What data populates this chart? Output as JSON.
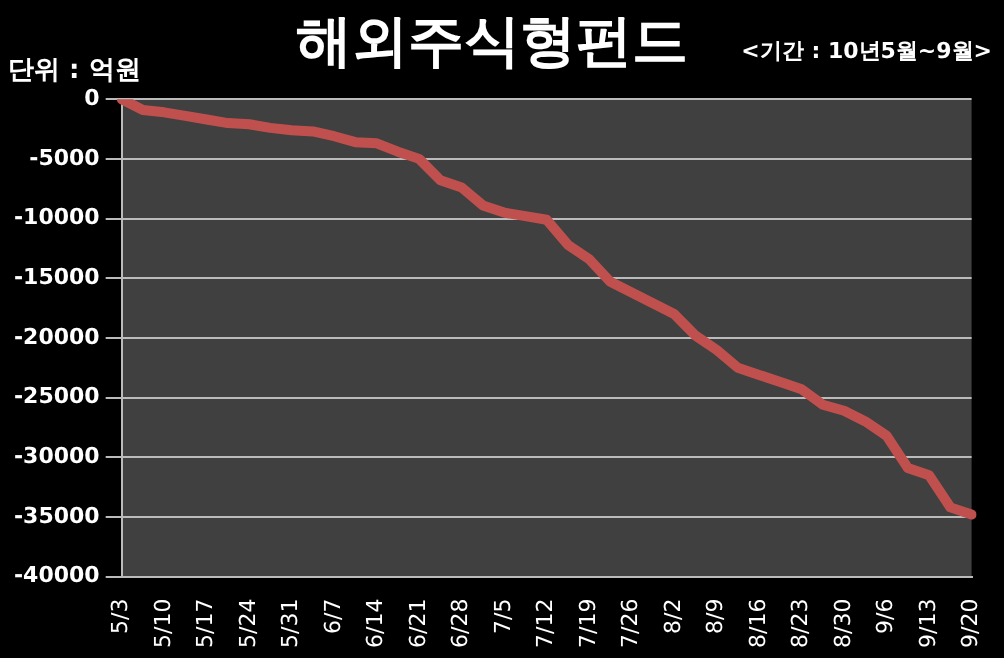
{
  "chart_data": {
    "type": "line",
    "title": "해외주식형펀드",
    "annotations": [
      "단위 : 억원",
      "<기간 : 10년5월~9월>"
    ],
    "categories": [
      "5/3",
      null,
      "5/10",
      null,
      "5/17",
      null,
      "5/24",
      null,
      "5/31",
      null,
      "6/7",
      null,
      "6/14",
      null,
      "6/21",
      null,
      "6/28",
      null,
      "7/5",
      null,
      "7/12",
      null,
      "7/19",
      null,
      "7/26",
      null,
      "8/2",
      null,
      "8/9",
      null,
      "8/16",
      null,
      "8/23",
      null,
      "8/30",
      null,
      "9/6",
      null,
      "9/13",
      null,
      "9/20"
    ],
    "series": [
      {
        "color": "#c0504d",
        "values": [
          0,
          -900,
          -1100,
          -1400,
          -1700,
          -2000,
          -2100,
          -2400,
          -2600,
          -2700,
          -3100,
          -3600,
          -3700,
          -4400,
          -5000,
          -6800,
          -7400,
          -8900,
          -9500,
          -9800,
          -10100,
          -12200,
          -13400,
          -15300,
          -16200,
          -17100,
          -18000,
          -19800,
          -21000,
          -22500,
          -23100,
          -23700,
          -24300,
          -25600,
          -26100,
          -27000,
          -28200,
          -30900,
          -31500,
          -34200,
          -34800
        ]
      }
    ],
    "ylim": [
      -40000,
      0
    ],
    "yticks": [
      -40000,
      -35000,
      -30000,
      -25000,
      -20000,
      -15000,
      -10000,
      -5000,
      0
    ],
    "grid": "y",
    "legend": false,
    "marker": "none",
    "line_style": "solid"
  }
}
